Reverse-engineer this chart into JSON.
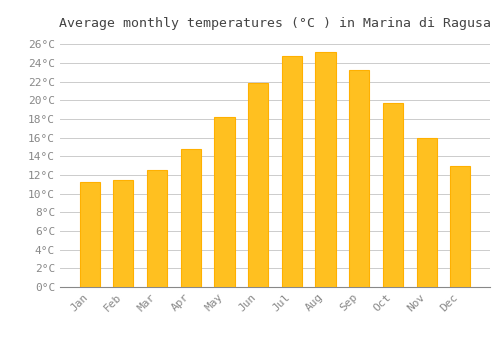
{
  "title": "Average monthly temperatures (°C ) in Marina di Ragusa",
  "months": [
    "Jan",
    "Feb",
    "Mar",
    "Apr",
    "May",
    "Jun",
    "Jul",
    "Aug",
    "Sep",
    "Oct",
    "Nov",
    "Dec"
  ],
  "values": [
    11.3,
    11.5,
    12.5,
    14.8,
    18.2,
    21.9,
    24.7,
    25.2,
    23.2,
    19.7,
    16.0,
    13.0
  ],
  "bar_color": "#FFC020",
  "bar_edge_color": "#FFB000",
  "background_color": "#FFFFFF",
  "grid_color": "#CCCCCC",
  "title_color": "#444444",
  "tick_label_color": "#888888",
  "ylim": [
    0,
    27
  ],
  "ytick_step": 2,
  "title_fontsize": 9.5,
  "tick_fontsize": 8,
  "bar_width": 0.6
}
